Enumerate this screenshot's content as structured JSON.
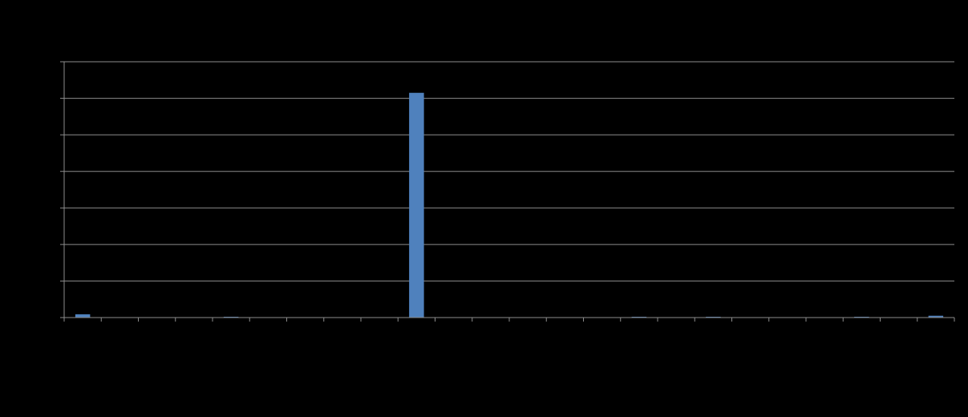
{
  "chart_data": {
    "type": "bar",
    "categories": [
      "",
      "",
      "",
      "",
      "",
      "",
      "",
      "",
      "",
      "",
      "",
      "",
      "",
      "",
      "",
      "",
      "",
      "",
      "",
      "",
      "",
      "",
      "",
      ""
    ],
    "values": [
      0.9,
      0,
      0,
      0,
      0.15,
      0,
      0,
      0,
      0,
      61.5,
      0,
      0,
      0,
      0,
      0,
      0.15,
      0,
      0.15,
      0,
      0,
      0,
      0.15,
      0,
      0.5
    ],
    "ylim": [
      0,
      70
    ],
    "y_gridlines": [
      10,
      20,
      30,
      40,
      50,
      60,
      70
    ],
    "grid": true,
    "legend": "none",
    "colors": {
      "background": "#000000",
      "bar": "#4f81bd",
      "grid": "#8c8c8c",
      "axis": "#8c8c8c"
    }
  }
}
